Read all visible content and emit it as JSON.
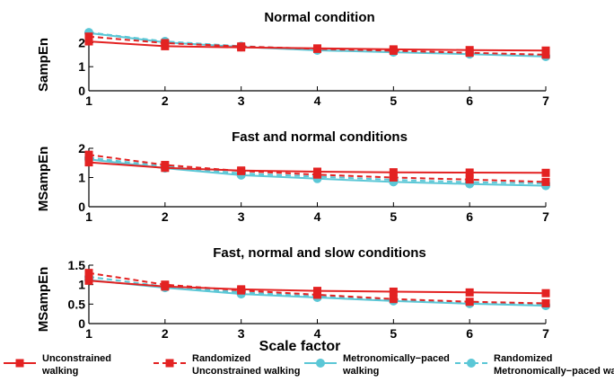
{
  "chart_data": {
    "type": "line",
    "xlabel": "Scale factor",
    "legend": {
      "placement": "bottom",
      "items": [
        {
          "line1": "Unconstrained",
          "line2": "walking",
          "series": 0
        },
        {
          "line1": "Randomized",
          "line2": "Unconstrained walking",
          "series": 1
        },
        {
          "line1": "Metronomically−paced",
          "line2": "walking",
          "series": 2
        },
        {
          "line1": "Randomized",
          "line2": "Metronomically−paced walking",
          "series": 3
        }
      ]
    },
    "series_styles": [
      {
        "color": "#e32222",
        "dash": "solid",
        "marker": "square"
      },
      {
        "color": "#e32222",
        "dash": "dashed",
        "marker": "square"
      },
      {
        "color": "#5bc7d6",
        "dash": "solid",
        "marker": "circle"
      },
      {
        "color": "#5bc7d6",
        "dash": "dashed",
        "marker": "circle"
      }
    ],
    "panels": [
      {
        "title": "Normal condition",
        "ylabel": "SampEn",
        "x": [
          1,
          2,
          3,
          4,
          5,
          6,
          7
        ],
        "xlim": [
          1,
          7
        ],
        "ylim": [
          0,
          2.5
        ],
        "yticks": [
          0,
          1,
          2
        ],
        "ytick_labels": [
          "0",
          "1",
          "2"
        ],
        "xtick_labels": [
          "1",
          "2",
          "3",
          "4",
          "5",
          "6",
          "7"
        ],
        "series": [
          {
            "values": [
              2.05,
              1.85,
              1.8,
              1.76,
              1.72,
              1.69,
              1.67
            ]
          },
          {
            "values": [
              2.25,
              1.98,
              1.84,
              1.74,
              1.66,
              1.58,
              1.5
            ]
          },
          {
            "values": [
              2.4,
              2.01,
              1.82,
              1.68,
              1.6,
              1.52,
              1.42
            ]
          },
          {
            "values": [
              2.42,
              2.05,
              1.85,
              1.72,
              1.63,
              1.54,
              1.45
            ]
          }
        ]
      },
      {
        "title": "Fast and normal conditions",
        "ylabel": "MSampEn",
        "x": [
          1,
          2,
          3,
          4,
          5,
          6,
          7
        ],
        "xlim": [
          1,
          7
        ],
        "ylim": [
          0,
          2
        ],
        "yticks": [
          0,
          1,
          2
        ],
        "ytick_labels": [
          "0",
          "1",
          "2"
        ],
        "xtick_labels": [
          "1",
          "2",
          "3",
          "4",
          "5",
          "6",
          "7"
        ],
        "series": [
          {
            "values": [
              1.52,
              1.33,
              1.24,
              1.2,
              1.18,
              1.17,
              1.16
            ]
          },
          {
            "values": [
              1.78,
              1.43,
              1.22,
              1.1,
              1.0,
              0.93,
              0.85
            ]
          },
          {
            "values": [
              1.62,
              1.32,
              1.08,
              0.96,
              0.85,
              0.78,
              0.72
            ]
          },
          {
            "values": [
              1.68,
              1.38,
              1.14,
              1.03,
              0.92,
              0.84,
              0.8
            ]
          }
        ]
      },
      {
        "title": "Fast, normal and slow conditions",
        "ylabel": "MSampEn",
        "x": [
          1,
          2,
          3,
          4,
          5,
          6,
          7
        ],
        "xlim": [
          1,
          7
        ],
        "ylim": [
          0,
          1.5
        ],
        "yticks": [
          0,
          0.5,
          1,
          1.5
        ],
        "ytick_labels": [
          "0",
          "0.5",
          "1",
          "1.5"
        ],
        "xtick_labels": [
          "1",
          "2",
          "3",
          "4",
          "5",
          "6",
          "7"
        ],
        "series": [
          {
            "values": [
              1.1,
              0.95,
              0.88,
              0.84,
              0.82,
              0.8,
              0.78
            ]
          },
          {
            "values": [
              1.3,
              1.0,
              0.85,
              0.74,
              0.63,
              0.56,
              0.52
            ]
          },
          {
            "values": [
              1.12,
              0.92,
              0.76,
              0.67,
              0.58,
              0.51,
              0.46
            ]
          },
          {
            "values": [
              1.2,
              0.95,
              0.8,
              0.7,
              0.6,
              0.53,
              0.48
            ]
          }
        ]
      }
    ]
  }
}
